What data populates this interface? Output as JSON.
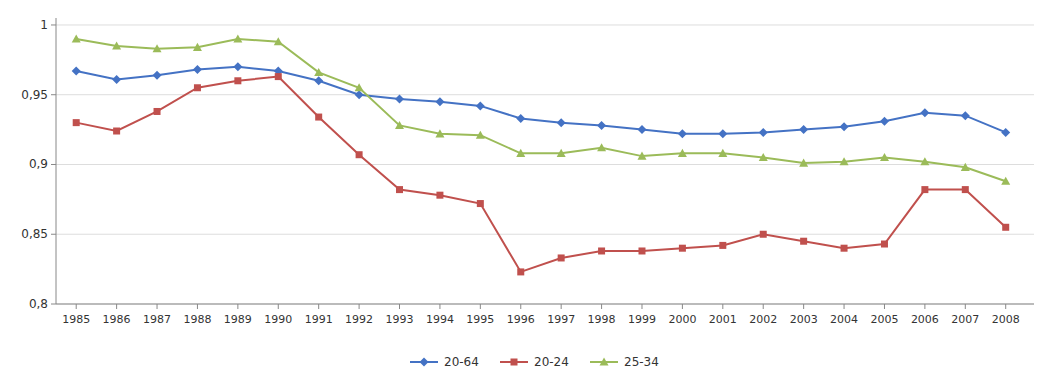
{
  "chart_data": {
    "type": "line",
    "x": [
      1985,
      1986,
      1987,
      1988,
      1989,
      1990,
      1991,
      1992,
      1993,
      1994,
      1995,
      1996,
      1997,
      1998,
      1999,
      2000,
      2001,
      2002,
      2003,
      2004,
      2005,
      2006,
      2007,
      2008
    ],
    "series": [
      {
        "name": "20-64",
        "color": "#4472C4",
        "marker": "diamond",
        "values": [
          0.967,
          0.961,
          0.964,
          0.968,
          0.97,
          0.967,
          0.96,
          0.95,
          0.947,
          0.945,
          0.942,
          0.933,
          0.93,
          0.928,
          0.925,
          0.922,
          0.922,
          0.923,
          0.925,
          0.927,
          0.931,
          0.937,
          0.935,
          0.923
        ]
      },
      {
        "name": "20-24",
        "color": "#C0504D",
        "marker": "square",
        "values": [
          0.93,
          0.924,
          0.938,
          0.955,
          0.96,
          0.963,
          0.934,
          0.907,
          0.882,
          0.878,
          0.872,
          0.823,
          0.833,
          0.838,
          0.838,
          0.84,
          0.842,
          0.85,
          0.845,
          0.84,
          0.843,
          0.882,
          0.882,
          0.855
        ]
      },
      {
        "name": "25-34",
        "color": "#9BBB59",
        "marker": "triangle",
        "values": [
          0.99,
          0.985,
          0.983,
          0.984,
          0.99,
          0.988,
          0.966,
          0.955,
          0.928,
          0.922,
          0.921,
          0.908,
          0.908,
          0.912,
          0.906,
          0.908,
          0.908,
          0.905,
          0.901,
          0.902,
          0.905,
          0.902,
          0.898,
          0.888
        ]
      }
    ],
    "xlim": [
      1984.5,
      2008.7
    ],
    "xticks": [
      1985,
      1986,
      1987,
      1988,
      1989,
      1990,
      1991,
      1992,
      1993,
      1994,
      1995,
      1996,
      1997,
      1998,
      1999,
      2000,
      2001,
      2002,
      2003,
      2004,
      2005,
      2006,
      2007,
      2008
    ],
    "ylim": [
      0.8,
      1.005
    ],
    "yticks": [
      {
        "value": 0.8,
        "label": "0,8"
      },
      {
        "value": 0.85,
        "label": "0,85"
      },
      {
        "value": 0.9,
        "label": "0,9"
      },
      {
        "value": 0.95,
        "label": "0,95"
      },
      {
        "value": 1.0,
        "label": "1"
      }
    ],
    "grid": true,
    "legend": "bottom"
  }
}
